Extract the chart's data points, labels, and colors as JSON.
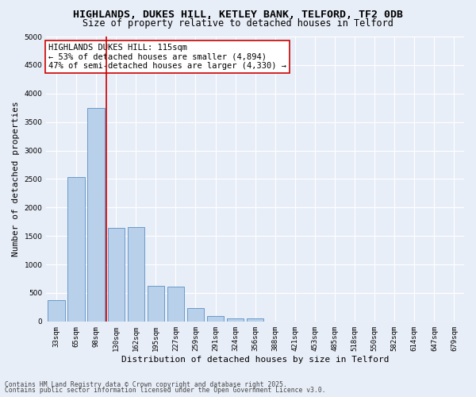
{
  "title1": "HIGHLANDS, DUKES HILL, KETLEY BANK, TELFORD, TF2 0DB",
  "title2": "Size of property relative to detached houses in Telford",
  "xlabel": "Distribution of detached houses by size in Telford",
  "ylabel": "Number of detached properties",
  "categories": [
    "33sqm",
    "65sqm",
    "98sqm",
    "130sqm",
    "162sqm",
    "195sqm",
    "227sqm",
    "259sqm",
    "291sqm",
    "324sqm",
    "356sqm",
    "388sqm",
    "421sqm",
    "453sqm",
    "485sqm",
    "518sqm",
    "550sqm",
    "582sqm",
    "614sqm",
    "647sqm",
    "679sqm"
  ],
  "values": [
    380,
    2530,
    3750,
    1640,
    1650,
    620,
    610,
    230,
    100,
    60,
    50,
    0,
    0,
    0,
    0,
    0,
    0,
    0,
    0,
    0,
    0
  ],
  "bar_color": "#b8d0ea",
  "bar_edge_color": "#5b8ec4",
  "vline_color": "#cc0000",
  "vline_x_index": 2.5,
  "annotation_line1": "HIGHLANDS DUKES HILL: 115sqm",
  "annotation_line2": "← 53% of detached houses are smaller (4,894)",
  "annotation_line3": "47% of semi-detached houses are larger (4,330) →",
  "annotation_box_color": "#ffffff",
  "annotation_box_edge_color": "#cc0000",
  "ylim": [
    0,
    5000
  ],
  "yticks": [
    0,
    500,
    1000,
    1500,
    2000,
    2500,
    3000,
    3500,
    4000,
    4500,
    5000
  ],
  "bg_color": "#e8eef8",
  "grid_color": "#ffffff",
  "footer1": "Contains HM Land Registry data © Crown copyright and database right 2025.",
  "footer2": "Contains public sector information licensed under the Open Government Licence v3.0.",
  "title1_fontsize": 9.5,
  "title2_fontsize": 8.5,
  "tick_fontsize": 6.5,
  "ylabel_fontsize": 8,
  "xlabel_fontsize": 8,
  "annotation_fontsize": 7.5,
  "footer_fontsize": 5.8
}
